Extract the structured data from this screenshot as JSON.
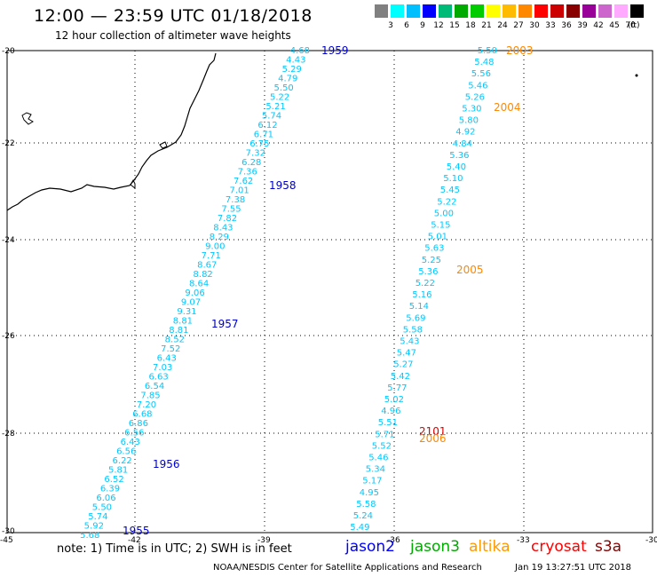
{
  "title": "12:00 — 23:59 UTC 01/18/2018",
  "subtitle": "12 hour collection of altimeter wave heights",
  "legend": {
    "colors": [
      "#808080",
      "#00ffff",
      "#00bfff",
      "#0000ff",
      "#00bb77",
      "#00aa00",
      "#00cc00",
      "#ffff00",
      "#ffbb00",
      "#ff8800",
      "#ff0000",
      "#cc0000",
      "#880000",
      "#990099",
      "#cc66cc",
      "#ffaaff",
      "#000000"
    ],
    "labels": [
      "3",
      "6",
      "9",
      "12",
      "15",
      "18",
      "21",
      "24",
      "27",
      "30",
      "33",
      "36",
      "39",
      "42",
      "45",
      "70"
    ],
    "unit": "(ft)"
  },
  "map": {
    "lat_labels": [
      "-20",
      "-22",
      "-24",
      "-26",
      "-28",
      "-30"
    ],
    "lon_labels": [
      "-45",
      "-42",
      "-39",
      "-36",
      "-33",
      "-30"
    ],
    "coastline_color": "#000000",
    "grid_style": "dotted"
  },
  "tracks": [
    {
      "satellite": "jason2",
      "color": "#00c8ff",
      "heights": [
        "4.68",
        "4.43",
        "5.29",
        "4.79",
        "5.50",
        "5.22",
        "5.21",
        "5.74",
        "6.12",
        "6.71",
        "6.75",
        "7.32",
        "6.28",
        "7.36",
        "7.62",
        "7.01",
        "7.38",
        "7.55",
        "7.82",
        "8.43",
        "8.29",
        "9.00",
        "7.71",
        "8.67",
        "8.82",
        "8.64",
        "9.06",
        "9.07",
        "9.31",
        "8.81",
        "8.81",
        "8.52",
        "7.52",
        "6.43",
        "7.03",
        "6.63",
        "6.54",
        "7.85",
        "7.20",
        "6.68",
        "6.86",
        "6.56",
        "6.43",
        "6.56",
        "6.22",
        "5.81",
        "6.52",
        "6.39",
        "6.06",
        "5.50",
        "5.74",
        "5.92",
        "5.68"
      ],
      "time_labels": [
        {
          "text": "1959",
          "color": "#0000cc"
        },
        {
          "text": "1958",
          "color": "#0000cc"
        },
        {
          "text": "1957",
          "color": "#0000cc"
        },
        {
          "text": "1956",
          "color": "#0000cc"
        },
        {
          "text": "1955",
          "color": "#0000cc"
        }
      ]
    },
    {
      "satellite": "altika",
      "color": "#00c8ff",
      "heights": [
        "5.50",
        "5.48",
        "5.56",
        "5.46",
        "5.26",
        "5.30",
        "5.80",
        "4.92",
        "4.84",
        "5.36",
        "5.40",
        "5.10",
        "5.45",
        "5.22",
        "5.00",
        "5.15",
        "5.01",
        "5.63",
        "5.25",
        "5.36",
        "5.22",
        "5.16",
        "5.14",
        "5.69",
        "5.58",
        "5.43",
        "5.47",
        "5.27",
        "5.42",
        "5.77",
        "5.02",
        "4.96",
        "5.51",
        "5.71",
        "5.52",
        "5.46",
        "5.34",
        "5.17",
        "4.95",
        "5.58",
        "5.24",
        "5.49"
      ],
      "time_labels": [
        {
          "text": "2003",
          "color": "#ff8800"
        },
        {
          "text": "2004",
          "color": "#ff8800"
        },
        {
          "text": "2005",
          "color": "#ff8800"
        },
        {
          "text": "2101",
          "color": "#dd0000"
        },
        {
          "text": "2006",
          "color": "#ff8800"
        }
      ]
    }
  ],
  "footer": {
    "note": "note:  1) Time is in UTC;  2) SWH is in feet",
    "satellites": [
      {
        "name": "jason2",
        "color": "#0000ff"
      },
      {
        "name": "jason3",
        "color": "#00aa00"
      },
      {
        "name": "altika",
        "color": "#ff9900"
      },
      {
        "name": "cryosat",
        "color": "#ff0000"
      },
      {
        "name": "s3a",
        "color": "#8b0000"
      }
    ],
    "credit": "NOAA/NESDIS Center for Satellite Applications and Research",
    "timestamp": "Jan 19 13:27:51 UTC 2018"
  }
}
